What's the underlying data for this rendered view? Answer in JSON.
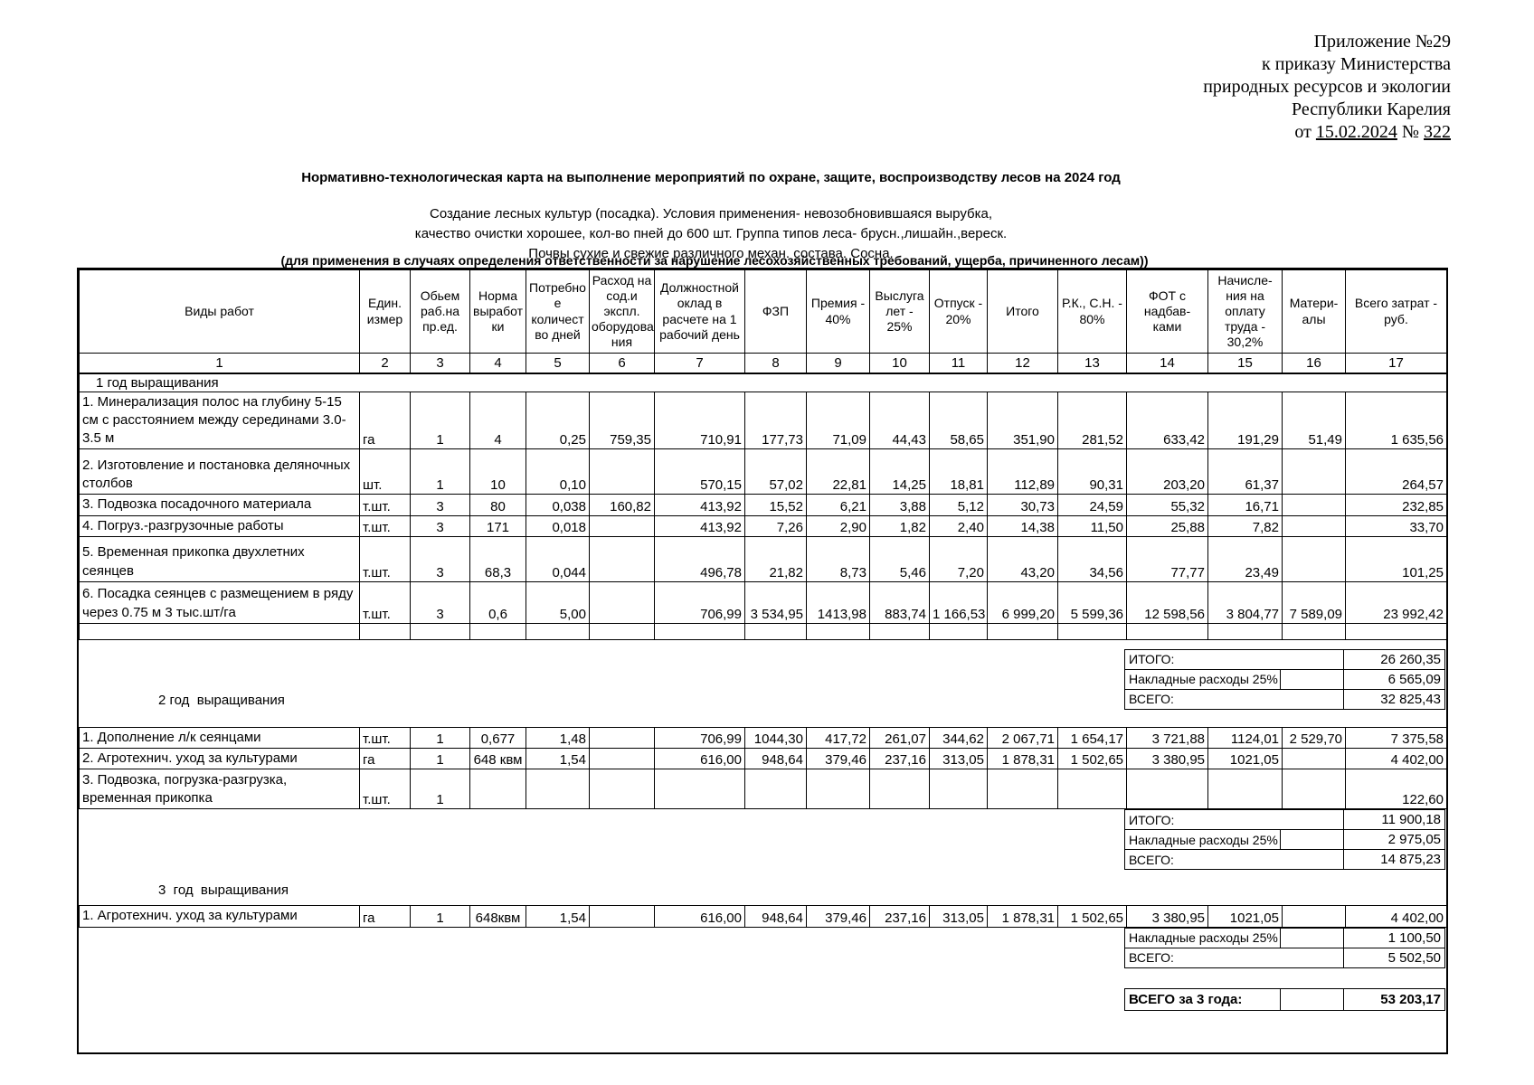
{
  "doc_header": {
    "lines": [
      "Приложение №29",
      "к приказу Министерства",
      "природных ресурсов и экологии",
      "Республики Карелия"
    ],
    "date_prefix": "от ",
    "date": "15.02.2024",
    "num_sep": " № ",
    "number": "322"
  },
  "title": "Нормативно-технологическая карта на выполнение мероприятий  по охране, защите, воспроизводству лесов на 2024 год",
  "conditions": [
    "Создание лесных культур (посадка). Условия применения- невозобновившаяся вырубка,",
    "качество очистки хорошее, кол-во пней до 600 шт. Группа типов леса- брусн.,лишайн.,вереск.",
    "Почвы сухие и свежие различного механ. состава. Сосна."
  ],
  "note": "(для применения в случаях определения ответственности за нарушение лесохозяйственных требований, ущерба, причиненного лесам))",
  "table": {
    "columns": [
      "Виды работ",
      "Един. измер",
      "Обьем раб.на пр.ед.",
      "Норма выработ ки",
      "Потребно е количест во дней",
      "Расход на сод.и экспл. оборудова ния",
      "Должностной оклад в расчете на 1 рабочий день",
      "ФЗП",
      "Премия - 40%",
      "Выслуга лет - 25%",
      "Отпуск - 20%",
      "Итого",
      "Р.К.,  С.Н. - 80%",
      "ФОТ с надбав- ками",
      "Начисле- ния на оплату труда - 30,2%",
      "Матери- алы",
      "Всего затрат - руб."
    ],
    "column_numbers": [
      "1",
      "2",
      "3",
      "4",
      "5",
      "6",
      "7",
      "8",
      "9",
      "10",
      "11",
      "12",
      "13",
      "14",
      "15",
      "16",
      "17"
    ],
    "year1": {
      "section_label": "1 год выращивания",
      "rows": [
        [
          "1. Минерализация полос на глубину 5-15 см с расстоянием между серединами 3.0-3.5 м",
          "га",
          "1",
          "4",
          "0,25",
          "759,35",
          "710,91",
          "177,73",
          "71,09",
          "44,43",
          "58,65",
          "351,90",
          "281,52",
          "633,42",
          "191,29",
          "51,49",
          "1 635,56"
        ],
        [
          "2. Изготовление и постановка  деляночных столбов",
          "шт.",
          "1",
          "10",
          "0,10",
          "",
          "570,15",
          "57,02",
          "22,81",
          "14,25",
          "18,81",
          "112,89",
          "90,31",
          "203,20",
          "61,37",
          "",
          "264,57"
        ],
        [
          "3. Подвозка посадочного материала",
          "т.шт.",
          "3",
          "80",
          "0,038",
          "160,82",
          "413,92",
          "15,52",
          "6,21",
          "3,88",
          "5,12",
          "30,73",
          "24,59",
          "55,32",
          "16,71",
          "",
          "232,85"
        ],
        [
          "4. Погруз.-разгрузочные работы",
          "т.шт.",
          "3",
          "171",
          "0,018",
          "",
          "413,92",
          "7,26",
          "2,90",
          "1,82",
          "2,40",
          "14,38",
          "11,50",
          "25,88",
          "7,82",
          "",
          "33,70"
        ],
        [
          "5. Временная прикопка двухлетних  сеянцев",
          "т.шт.",
          "3",
          "68,3",
          "0,044",
          "",
          "496,78",
          "21,82",
          "8,73",
          "5,46",
          "7,20",
          "43,20",
          "34,56",
          "77,77",
          "23,49",
          "",
          "101,25"
        ],
        [
          "6. Посадка сеянцев с размещением в ряду через 0.75 м 3 тыс.шт/га",
          "т.шт.",
          "3",
          "0,6",
          "5,00",
          "",
          "706,99",
          "3 534,95",
          "1413,98",
          "883,74",
          "1 166,53",
          "6 999,20",
          "5 599,36",
          "12 598,56",
          "3 804,77",
          "7 589,09",
          "23 992,42"
        ],
        [
          "",
          "",
          "",
          "",
          "",
          "",
          "",
          "",
          "",
          "",
          "",
          "",
          "",
          "",
          "",
          "",
          ""
        ]
      ],
      "totals": [
        {
          "label": "ИТОГО:",
          "value": "26 260,35",
          "wide": true
        },
        {
          "label": "Накладные расходы 25%",
          "value": "6 565,09",
          "wide": false
        },
        {
          "label": "ВСЕГО:",
          "value": "32 825,43",
          "wide": true
        }
      ]
    },
    "year2": {
      "section_label": "2 год  выращивания",
      "rows": [
        [
          "1. Дополнение л/к сеянцами",
          "т.шт.",
          "1",
          "0,677",
          "1,48",
          "",
          "706,99",
          "1044,30",
          "417,72",
          "261,07",
          "344,62",
          "2 067,71",
          "1 654,17",
          "3 721,88",
          "1124,01",
          "2 529,70",
          "7 375,58"
        ],
        [
          "2. Агротехнич. уход за культурами",
          "га",
          "1",
          "648 квм",
          "1,54",
          "",
          "616,00",
          "948,64",
          "379,46",
          "237,16",
          "313,05",
          "1 878,31",
          "1 502,65",
          "3 380,95",
          "1021,05",
          "",
          "4 402,00"
        ],
        [
          "3. Подвозка, погрузка-разгрузка, временная прикопка",
          "т.шт.",
          "1",
          "",
          "",
          "",
          "",
          "",
          "",
          "",
          "",
          "",
          "",
          "",
          "",
          "",
          "122,60"
        ]
      ],
      "totals": [
        {
          "label": "ИТОГО:",
          "value": "11 900,18",
          "wide": true
        },
        {
          "label": "Накладные расходы 25%",
          "value": "2 975,05",
          "wide": false
        },
        {
          "label": "ВСЕГО:",
          "value": "14 875,23",
          "wide": true
        }
      ]
    },
    "year3": {
      "section_label": "3  год  выращивания",
      "rows": [
        [
          "1. Агротехнич. уход за культурами",
          "га",
          "1",
          "648квм",
          "1,54",
          "",
          "616,00",
          "948,64",
          "379,46",
          "237,16",
          "313,05",
          "1 878,31",
          "1 502,65",
          "3 380,95",
          "1021,05",
          "",
          "4 402,00"
        ]
      ],
      "totals": [
        {
          "label": "Накладные расходы 25%",
          "value": "1 100,50",
          "wide": false
        },
        {
          "label": "ВСЕГО:",
          "value": "5 502,50",
          "wide": true
        }
      ]
    },
    "grand_total": {
      "label": "ВСЕГО за 3 года:",
      "value": "53 203,17"
    }
  }
}
